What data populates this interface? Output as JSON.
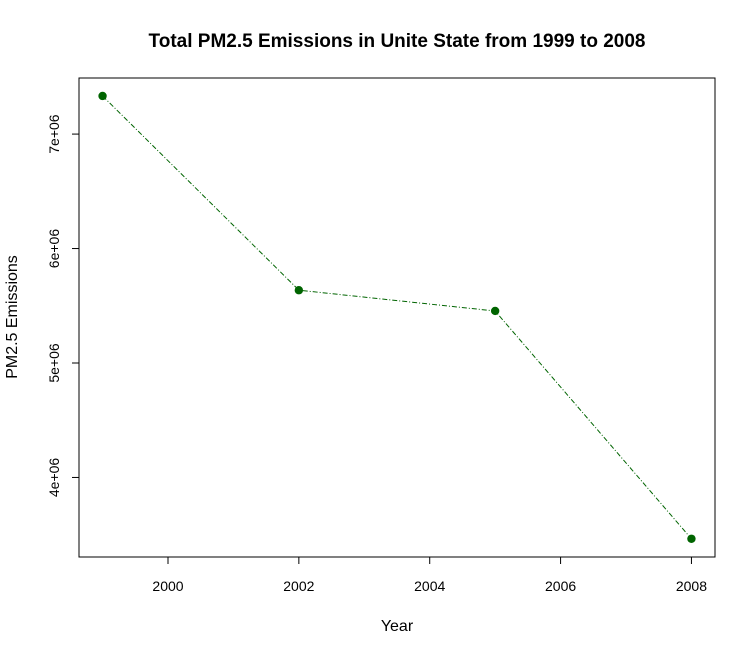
{
  "chart_data": {
    "type": "line",
    "title": "Total PM2.5 Emissions in Unite State from 1999 to 2008",
    "xlabel": "Year",
    "ylabel": "PM2.5 Emissions",
    "x": [
      1999,
      2002,
      2005,
      2008
    ],
    "series": [
      {
        "values": [
          7332967,
          5635780,
          5454703,
          3464206
        ]
      }
    ],
    "xlim": [
      1998.64,
      2008.36
    ],
    "ylim": [
      3305000,
      7490000
    ],
    "x_ticks": [
      2000,
      2002,
      2004,
      2006,
      2008
    ],
    "x_tick_labels": [
      "2000",
      "2002",
      "2004",
      "2006",
      "2008"
    ],
    "y_ticks": [
      4000000,
      5000000,
      6000000,
      7000000
    ],
    "y_tick_labels": [
      "4e+06",
      "5e+06",
      "6e+06",
      "7e+06"
    ],
    "grid": false,
    "legend": "none",
    "colors": {
      "line": "#006400",
      "point": "#006400",
      "axis": "#000000"
    }
  }
}
